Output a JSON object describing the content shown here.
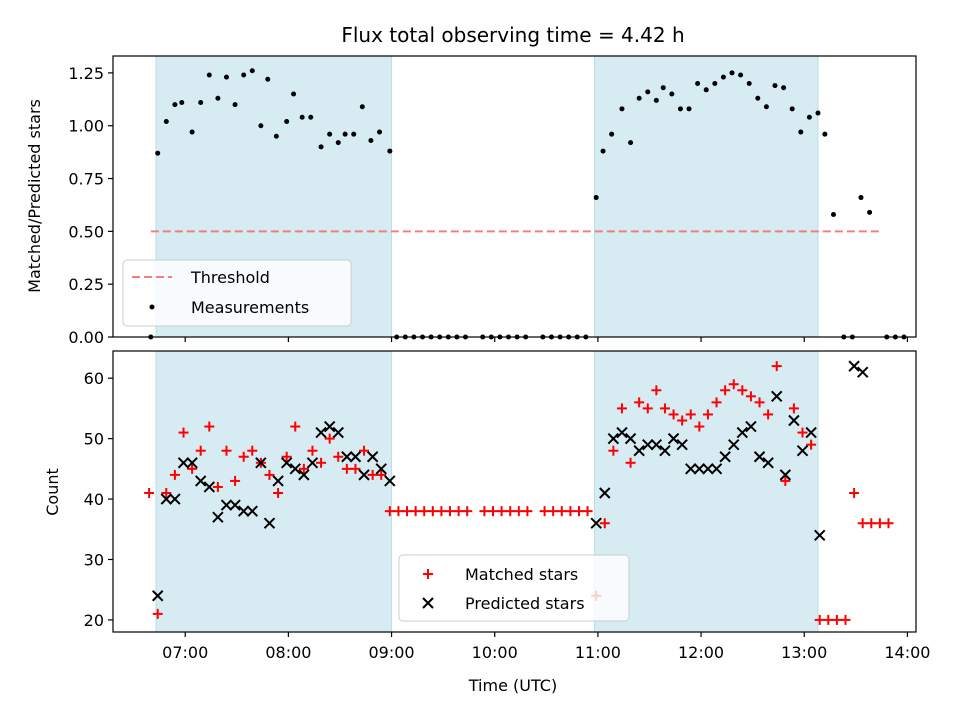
{
  "chart_data": [
    {
      "type": "scatter",
      "title": "Flux total observing time = 4.42 h",
      "xlabel": "",
      "ylabel": "Matched/Predicted stars",
      "ylim": [
        0,
        1.33
      ],
      "xlim": [
        "06:18",
        "14:05"
      ],
      "yticks": [
        "0.00",
        "0.25",
        "0.50",
        "0.75",
        "1.00",
        "1.25"
      ],
      "shaded_intervals": [
        [
          "06:43",
          "09:00"
        ],
        [
          "10:58",
          "13:08"
        ]
      ],
      "legend_position": "lower-left",
      "threshold": {
        "name": "Threshold",
        "y": 0.5,
        "x_start": "06:40",
        "x_end": "13:45",
        "color": "#f08080"
      },
      "series": [
        {
          "name": "Measurements",
          "color": "#000000",
          "points": [
            [
              "06:40",
              0.0
            ],
            [
              "06:44",
              0.87
            ],
            [
              "06:49",
              1.02
            ],
            [
              "06:54",
              1.1
            ],
            [
              "06:58",
              1.11
            ],
            [
              "07:04",
              0.97
            ],
            [
              "07:09",
              1.11
            ],
            [
              "07:14",
              1.24
            ],
            [
              "07:19",
              1.13
            ],
            [
              "07:24",
              1.23
            ],
            [
              "07:29",
              1.1
            ],
            [
              "07:34",
              1.24
            ],
            [
              "07:39",
              1.26
            ],
            [
              "07:44",
              1.0
            ],
            [
              "07:48",
              1.22
            ],
            [
              "07:53",
              0.95
            ],
            [
              "07:59",
              1.02
            ],
            [
              "08:03",
              1.15
            ],
            [
              "08:08",
              1.04
            ],
            [
              "08:13",
              1.04
            ],
            [
              "08:19",
              0.9
            ],
            [
              "08:24",
              0.96
            ],
            [
              "08:29",
              0.92
            ],
            [
              "08:33",
              0.96
            ],
            [
              "08:38",
              0.96
            ],
            [
              "08:43",
              1.09
            ],
            [
              "08:48",
              0.93
            ],
            [
              "08:53",
              0.97
            ],
            [
              "08:59",
              0.88
            ],
            [
              "09:03",
              0.0
            ],
            [
              "09:08",
              0.0
            ],
            [
              "09:13",
              0.0
            ],
            [
              "09:18",
              0.0
            ],
            [
              "09:23",
              0.0
            ],
            [
              "09:28",
              0.0
            ],
            [
              "09:33",
              0.0
            ],
            [
              "09:38",
              0.0
            ],
            [
              "09:43",
              0.0
            ],
            [
              "09:53",
              0.0
            ],
            [
              "09:58",
              0.0
            ],
            [
              "10:03",
              0.0
            ],
            [
              "10:08",
              0.0
            ],
            [
              "10:13",
              0.0
            ],
            [
              "10:18",
              0.0
            ],
            [
              "10:28",
              0.0
            ],
            [
              "10:33",
              0.0
            ],
            [
              "10:38",
              0.0
            ],
            [
              "10:43",
              0.0
            ],
            [
              "10:48",
              0.0
            ],
            [
              "10:53",
              0.0
            ],
            [
              "10:59",
              0.66
            ],
            [
              "11:03",
              0.88
            ],
            [
              "11:08",
              0.96
            ],
            [
              "11:14",
              1.08
            ],
            [
              "11:19",
              0.92
            ],
            [
              "11:24",
              1.13
            ],
            [
              "11:29",
              1.16
            ],
            [
              "11:34",
              1.12
            ],
            [
              "11:38",
              1.18
            ],
            [
              "11:43",
              1.15
            ],
            [
              "11:48",
              1.08
            ],
            [
              "11:53",
              1.08
            ],
            [
              "11:58",
              1.2
            ],
            [
              "12:03",
              1.17
            ],
            [
              "12:08",
              1.2
            ],
            [
              "12:13",
              1.23
            ],
            [
              "12:18",
              1.25
            ],
            [
              "12:23",
              1.24
            ],
            [
              "12:28",
              1.2
            ],
            [
              "12:33",
              1.13
            ],
            [
              "12:38",
              1.09
            ],
            [
              "12:43",
              1.19
            ],
            [
              "12:48",
              1.18
            ],
            [
              "12:53",
              1.08
            ],
            [
              "12:58",
              0.97
            ],
            [
              "13:03",
              1.04
            ],
            [
              "13:08",
              1.06
            ],
            [
              "13:12",
              0.96
            ],
            [
              "13:17",
              0.58
            ],
            [
              "13:23",
              0.0
            ],
            [
              "13:28",
              0.0
            ],
            [
              "13:33",
              0.66
            ],
            [
              "13:38",
              0.59
            ],
            [
              "13:48",
              0.0
            ],
            [
              "13:53",
              0.0
            ],
            [
              "13:58",
              0.0
            ]
          ]
        }
      ]
    },
    {
      "type": "scatter",
      "title": "",
      "xlabel": "Time (UTC)",
      "ylabel": "Count",
      "ylim": [
        18,
        64.5
      ],
      "xlim": [
        "06:18",
        "14:05"
      ],
      "xticks": [
        "07:00",
        "08:00",
        "09:00",
        "10:00",
        "11:00",
        "12:00",
        "13:00",
        "14:00"
      ],
      "yticks": [
        "20",
        "30",
        "40",
        "50",
        "60"
      ],
      "shaded_intervals": [
        [
          "06:43",
          "09:00"
        ],
        [
          "10:58",
          "13:08"
        ]
      ],
      "legend_position": "lower-center",
      "series": [
        {
          "name": "Matched stars",
          "marker": "plus",
          "color": "#ff0000",
          "points": [
            [
              "06:39",
              41
            ],
            [
              "06:44",
              21
            ],
            [
              "06:49",
              41
            ],
            [
              "06:54",
              44
            ],
            [
              "06:59",
              51
            ],
            [
              "07:04",
              45
            ],
            [
              "07:09",
              48
            ],
            [
              "07:14",
              52
            ],
            [
              "07:19",
              42
            ],
            [
              "07:24",
              48
            ],
            [
              "07:29",
              43
            ],
            [
              "07:34",
              47
            ],
            [
              "07:39",
              48
            ],
            [
              "07:44",
              46
            ],
            [
              "07:49",
              44
            ],
            [
              "07:54",
              41
            ],
            [
              "07:59",
              47
            ],
            [
              "08:04",
              52
            ],
            [
              "08:09",
              45
            ],
            [
              "08:14",
              48
            ],
            [
              "08:19",
              46
            ],
            [
              "08:24",
              50
            ],
            [
              "08:29",
              47
            ],
            [
              "08:34",
              45
            ],
            [
              "08:39",
              45
            ],
            [
              "08:44",
              48
            ],
            [
              "08:49",
              44
            ],
            [
              "08:54",
              44
            ],
            [
              "08:59",
              38
            ],
            [
              "09:04",
              38
            ],
            [
              "09:09",
              38
            ],
            [
              "09:14",
              38
            ],
            [
              "09:19",
              38
            ],
            [
              "09:24",
              38
            ],
            [
              "09:29",
              38
            ],
            [
              "09:34",
              38
            ],
            [
              "09:39",
              38
            ],
            [
              "09:44",
              38
            ],
            [
              "09:54",
              38
            ],
            [
              "09:59",
              38
            ],
            [
              "10:04",
              38
            ],
            [
              "10:09",
              38
            ],
            [
              "10:14",
              38
            ],
            [
              "10:19",
              38
            ],
            [
              "10:29",
              38
            ],
            [
              "10:34",
              38
            ],
            [
              "10:39",
              38
            ],
            [
              "10:44",
              38
            ],
            [
              "10:49",
              38
            ],
            [
              "10:54",
              38
            ],
            [
              "10:59",
              24
            ],
            [
              "11:04",
              36
            ],
            [
              "11:09",
              48
            ],
            [
              "11:14",
              55
            ],
            [
              "11:19",
              46
            ],
            [
              "11:24",
              56
            ],
            [
              "11:29",
              55
            ],
            [
              "11:34",
              58
            ],
            [
              "11:39",
              55
            ],
            [
              "11:44",
              54
            ],
            [
              "11:49",
              53
            ],
            [
              "11:54",
              54
            ],
            [
              "11:59",
              52
            ],
            [
              "12:04",
              54
            ],
            [
              "12:09",
              56
            ],
            [
              "12:14",
              58
            ],
            [
              "12:19",
              59
            ],
            [
              "12:24",
              58
            ],
            [
              "12:29",
              57
            ],
            [
              "12:34",
              56
            ],
            [
              "12:39",
              54
            ],
            [
              "12:44",
              62
            ],
            [
              "12:49",
              43
            ],
            [
              "12:54",
              55
            ],
            [
              "12:59",
              51
            ],
            [
              "13:04",
              49
            ],
            [
              "13:09",
              20
            ],
            [
              "13:14",
              20
            ],
            [
              "13:19",
              20
            ],
            [
              "13:24",
              20
            ],
            [
              "13:29",
              41
            ],
            [
              "13:34",
              36
            ],
            [
              "13:39",
              36
            ],
            [
              "13:44",
              36
            ],
            [
              "13:49",
              36
            ]
          ]
        },
        {
          "name": "Predicted stars",
          "marker": "x",
          "color": "#000000",
          "points": [
            [
              "06:44",
              24
            ],
            [
              "06:49",
              40
            ],
            [
              "06:54",
              40
            ],
            [
              "06:59",
              46
            ],
            [
              "07:04",
              46
            ],
            [
              "07:09",
              43
            ],
            [
              "07:14",
              42
            ],
            [
              "07:19",
              37
            ],
            [
              "07:24",
              39
            ],
            [
              "07:29",
              39
            ],
            [
              "07:34",
              38
            ],
            [
              "07:39",
              38
            ],
            [
              "07:44",
              46
            ],
            [
              "07:49",
              36
            ],
            [
              "07:54",
              43
            ],
            [
              "07:59",
              46
            ],
            [
              "08:04",
              45
            ],
            [
              "08:09",
              44
            ],
            [
              "08:14",
              46
            ],
            [
              "08:19",
              51
            ],
            [
              "08:24",
              52
            ],
            [
              "08:29",
              51
            ],
            [
              "08:34",
              47
            ],
            [
              "08:39",
              47
            ],
            [
              "08:44",
              44
            ],
            [
              "08:49",
              47
            ],
            [
              "08:54",
              45
            ],
            [
              "08:59",
              43
            ],
            [
              "10:59",
              36
            ],
            [
              "11:04",
              41
            ],
            [
              "11:09",
              50
            ],
            [
              "11:14",
              51
            ],
            [
              "11:19",
              50
            ],
            [
              "11:24",
              48
            ],
            [
              "11:29",
              49
            ],
            [
              "11:34",
              49
            ],
            [
              "11:39",
              48
            ],
            [
              "11:44",
              50
            ],
            [
              "11:49",
              49
            ],
            [
              "11:54",
              45
            ],
            [
              "11:59",
              45
            ],
            [
              "12:04",
              45
            ],
            [
              "12:09",
              45
            ],
            [
              "12:14",
              47
            ],
            [
              "12:19",
              49
            ],
            [
              "12:24",
              51
            ],
            [
              "12:29",
              52
            ],
            [
              "12:34",
              47
            ],
            [
              "12:39",
              46
            ],
            [
              "12:44",
              57
            ],
            [
              "12:49",
              44
            ],
            [
              "12:54",
              53
            ],
            [
              "12:59",
              48
            ],
            [
              "13:04",
              51
            ],
            [
              "13:09",
              34
            ],
            [
              "13:29",
              62
            ],
            [
              "13:34",
              61
            ]
          ]
        }
      ]
    }
  ]
}
